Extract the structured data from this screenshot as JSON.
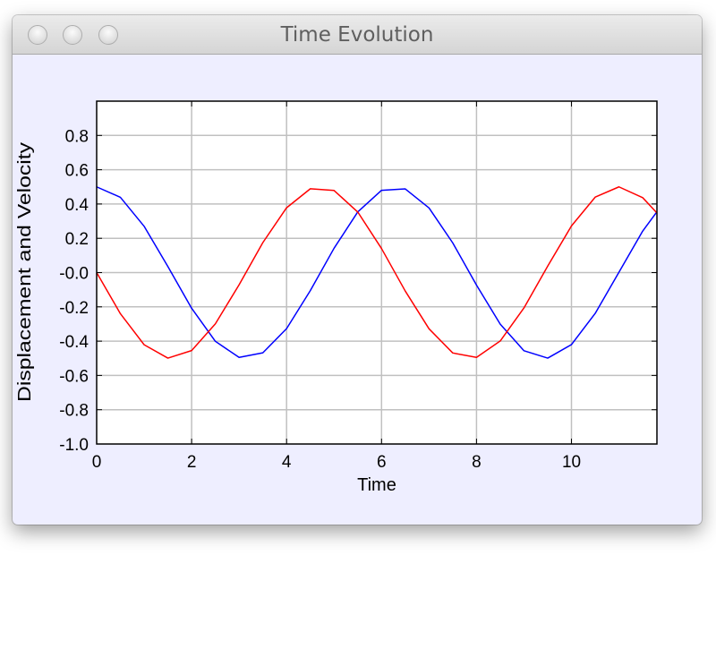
{
  "window": {
    "title": "Time Evolution",
    "buttons": [
      "close",
      "minimize",
      "zoom"
    ]
  },
  "colors": {
    "window_background": "#eeeeff",
    "plot_background": "#ffffff",
    "grid": "#c0c0c0",
    "displacement": "#0000ff",
    "velocity": "#ff0000"
  },
  "chart_data": {
    "type": "line",
    "xlabel": "Time",
    "ylabel": "Displacement and Velocity",
    "xlim": [
      0,
      11.8
    ],
    "ylim": [
      -1.0,
      1.0
    ],
    "xticks": [
      0,
      2,
      4,
      6,
      8,
      10
    ],
    "xtick_labels": [
      "0",
      "2",
      "4",
      "6",
      "8",
      "10"
    ],
    "yticks": [
      0.8,
      0.6,
      0.4,
      0.2,
      0.0,
      -0.2,
      -0.4,
      -0.6,
      -0.8,
      -1.0
    ],
    "ytick_labels": [
      "0.8",
      "0.6",
      "0.4",
      "0.2",
      "-0.0",
      "-0.2",
      "-0.4",
      "-0.6",
      "-0.8",
      "-1.0"
    ],
    "grid": true,
    "legend": false,
    "series": [
      {
        "color": "#0000ff",
        "x": [
          0,
          0.5,
          1,
          1.5,
          2,
          2.5,
          3,
          3.5,
          4,
          4.5,
          5,
          5.5,
          6,
          6.5,
          7,
          7.5,
          8,
          8.5,
          9,
          9.5,
          10,
          10.5,
          11,
          11.5,
          11.8
        ],
        "y": [
          0.5,
          0.439,
          0.27,
          0.035,
          -0.208,
          -0.401,
          -0.495,
          -0.468,
          -0.327,
          -0.105,
          0.142,
          0.354,
          0.48,
          0.488,
          0.377,
          0.173,
          -0.073,
          -0.301,
          -0.456,
          -0.499,
          -0.42,
          -0.238,
          0.002,
          0.242,
          0.355
        ]
      },
      {
        "color": "#ff0000",
        "x": [
          0,
          0.5,
          1,
          1.5,
          2,
          2.5,
          3,
          3.5,
          4,
          4.5,
          5,
          5.5,
          6,
          6.5,
          7,
          7.5,
          8,
          8.5,
          9,
          9.5,
          10,
          10.5,
          11,
          11.5,
          11.8
        ],
        "y": [
          0.0,
          -0.24,
          -0.421,
          -0.499,
          -0.455,
          -0.299,
          -0.071,
          0.175,
          0.378,
          0.489,
          0.479,
          0.353,
          0.14,
          -0.108,
          -0.328,
          -0.469,
          -0.495,
          -0.399,
          -0.206,
          0.038,
          0.272,
          0.44,
          0.5,
          0.437,
          0.348
        ]
      }
    ]
  }
}
